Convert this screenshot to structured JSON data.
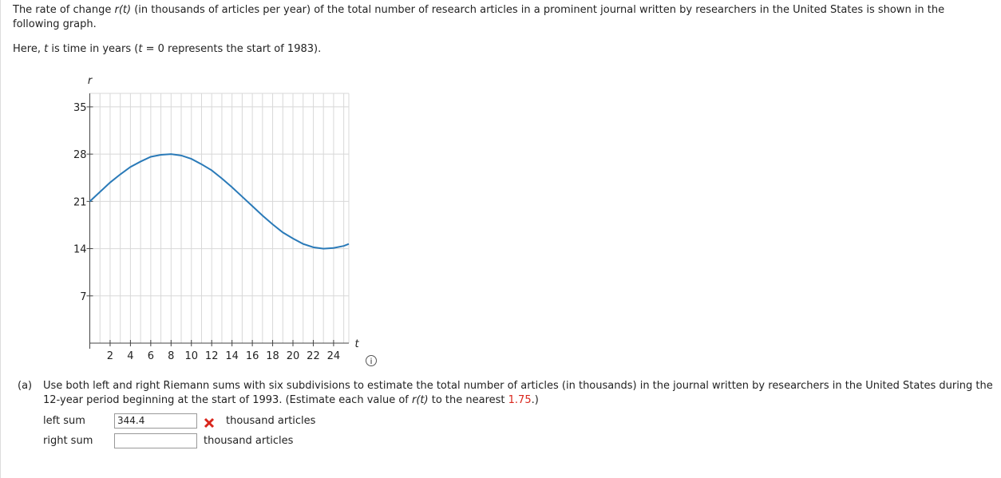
{
  "intro": [
    "The rate of change ",
    "r(t)",
    " (in thousands of articles per year) of the total number of research articles in a prominent journal written by researchers in the United States is shown in the following graph."
  ],
  "here": [
    "Here, ",
    "t",
    " is time in years (",
    "t",
    " = 0 represents the start of 1983)."
  ],
  "graph": {
    "type": "line",
    "x_label": "t",
    "y_label": "r",
    "color": "#2a7ab8",
    "xlim": [
      0,
      25.5
    ],
    "ylim": [
      0,
      37
    ],
    "xticks": [
      2,
      4,
      6,
      8,
      10,
      12,
      14,
      16,
      18,
      20,
      22,
      24
    ],
    "yticks": [
      7,
      14,
      21,
      28,
      35
    ],
    "x_grid_step": 1,
    "grid": true,
    "x": [
      0,
      1,
      2,
      3,
      4,
      5,
      6,
      7,
      8,
      9,
      10,
      11,
      12,
      13,
      14,
      15,
      16,
      17,
      18,
      19,
      20,
      21,
      22,
      23,
      24,
      25,
      25.5
    ],
    "values": [
      21,
      22.4,
      23.8,
      25.0,
      26.1,
      26.9,
      27.6,
      27.9,
      28.0,
      27.8,
      27.3,
      26.5,
      25.6,
      24.4,
      23.1,
      21.7,
      20.3,
      18.9,
      17.6,
      16.4,
      15.5,
      14.7,
      14.2,
      14.0,
      14.1,
      14.4,
      14.7
    ]
  },
  "part_a": {
    "label": "(a)",
    "text": [
      "Use both left and right Riemann sums with six subdivisions to estimate the total number of articles (in thousands) in the journal written by researchers in the United States during the 12-year period beginning at the start of 1993. (Estimate each value of ",
      "r(t)",
      " to the nearest ",
      "1.75",
      ".)"
    ],
    "rows": [
      {
        "label": "left sum",
        "input": "344.4",
        "unit": "thousand articles"
      },
      {
        "label": "right sum",
        "unit": "thousand articles"
      }
    ]
  }
}
